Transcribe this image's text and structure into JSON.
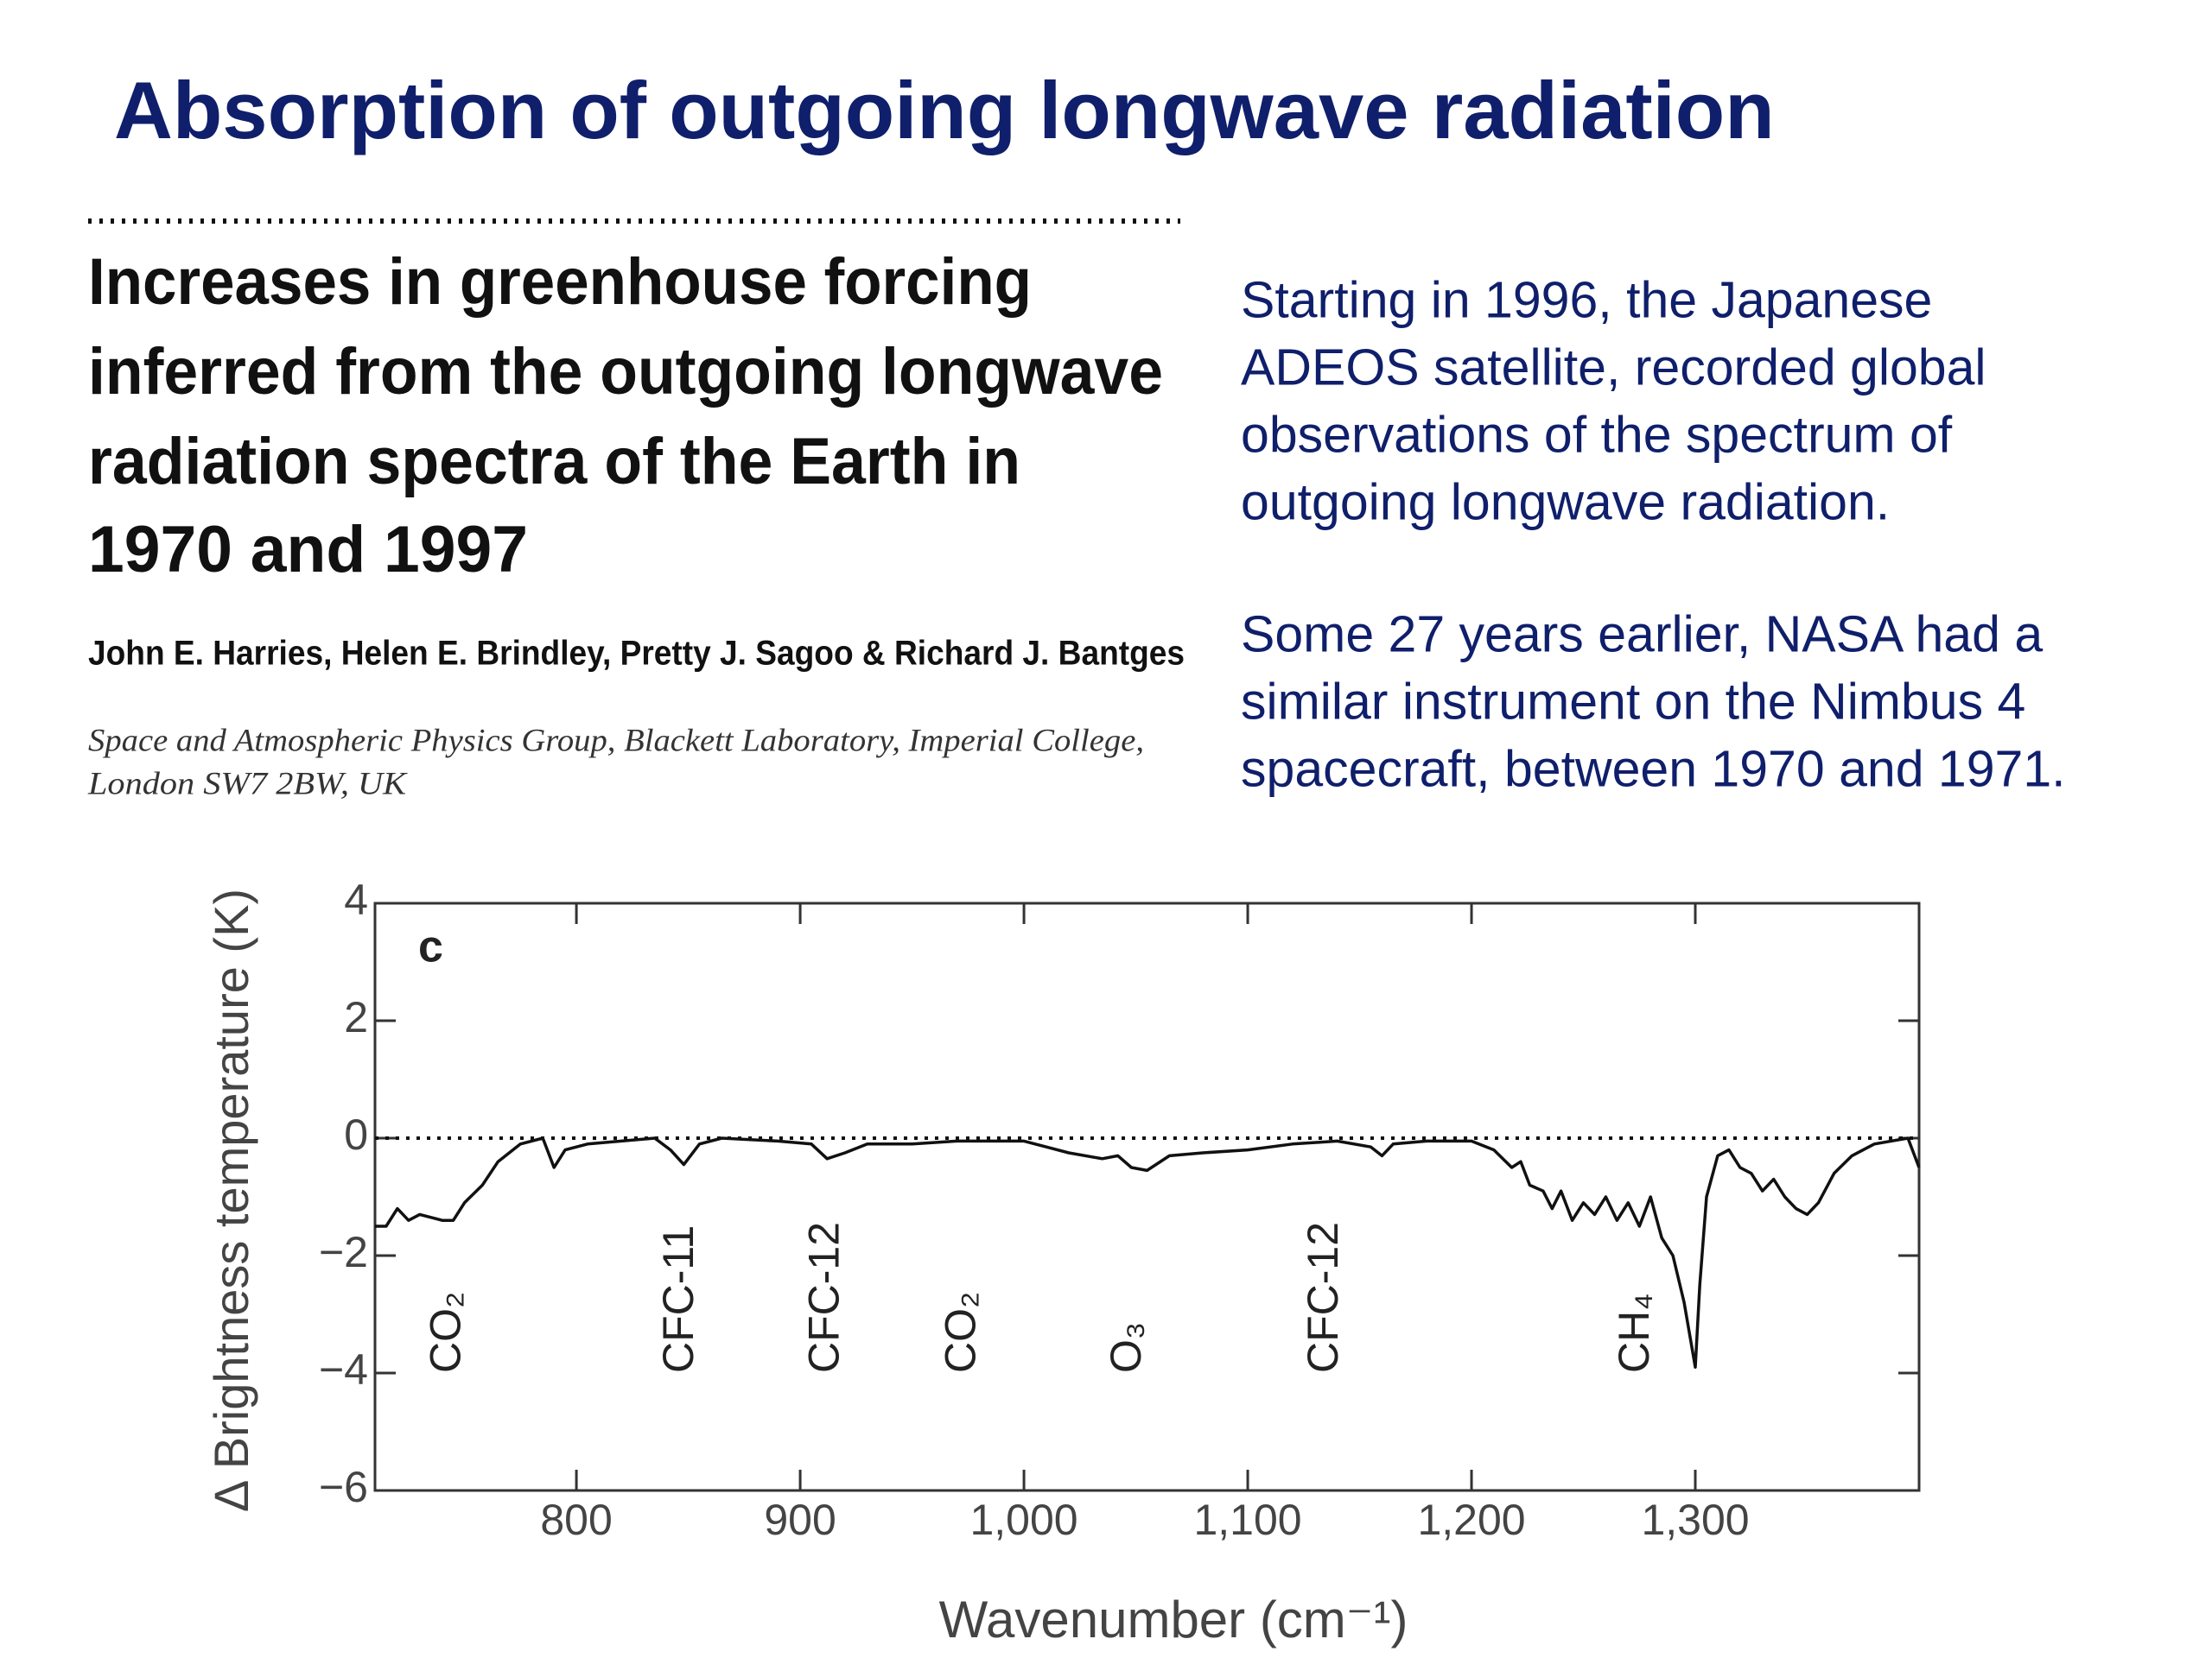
{
  "slide": {
    "title": "Absorption of outgoing longwave radiation",
    "paper_title": [
      "Increases in greenhouse forcing",
      "inferred from the outgoing longwave",
      "radiation spectra of the Earth in",
      "1970 and 1997"
    ],
    "authors": "John E. Harries, Helen E. Brindley, Pretty J. Sagoo & Richard J. Bantges",
    "affiliation": [
      "Space and Atmospheric Physics Group, Blackett Laboratory, Imperial College,",
      "London SW7 2BW, UK"
    ],
    "description": [
      [
        "Starting in 1996, the Japanese",
        "ADEOS satellite, recorded global",
        "observations of the spectrum of",
        "outgoing longwave radiation."
      ],
      [
        "Some 27 years earlier, NASA had a",
        "similar instrument on the Nimbus 4",
        "spacecraft, between 1970 and  1971."
      ]
    ]
  },
  "chart_data": {
    "type": "line",
    "panel_label": "c",
    "x_label": "Wavenumber (cm⁻¹)",
    "y_label": "Δ Brightness temperature (K)",
    "xlim": [
      710,
      1400
    ],
    "ylim": [
      -6,
      4
    ],
    "xticks": [
      800,
      900,
      {
        "value": 1000,
        "label": "1,000"
      },
      {
        "value": 1100,
        "label": "1,100"
      },
      {
        "value": 1200,
        "label": "1,200"
      },
      {
        "value": 1300,
        "label": "1,300"
      }
    ],
    "yticks": [
      4,
      2,
      0,
      {
        "value": -2,
        "label": "−2"
      },
      {
        "value": -4,
        "label": "−4"
      },
      {
        "value": -6,
        "label": "−6"
      }
    ],
    "reference_line": 0,
    "color": "#111111",
    "x": [
      710,
      715,
      720,
      725,
      730,
      740,
      745,
      750,
      758,
      765,
      775,
      785,
      790,
      795,
      805,
      820,
      835,
      842,
      848,
      855,
      865,
      890,
      905,
      912,
      920,
      930,
      950,
      970,
      1000,
      1010,
      1020,
      1035,
      1042,
      1048,
      1055,
      1065,
      1080,
      1100,
      1120,
      1140,
      1155,
      1160,
      1165,
      1180,
      1200,
      1210,
      1218,
      1222,
      1226,
      1232,
      1236,
      1240,
      1245,
      1250,
      1255,
      1260,
      1265,
      1270,
      1275,
      1280,
      1285,
      1290,
      1295,
      1300,
      1302,
      1305,
      1310,
      1315,
      1320,
      1325,
      1330,
      1335,
      1340,
      1345,
      1350,
      1355,
      1362,
      1370,
      1380,
      1395,
      1400
    ],
    "values": [
      -1.5,
      -1.5,
      -1.2,
      -1.4,
      -1.3,
      -1.4,
      -1.4,
      -1.1,
      -0.8,
      -0.4,
      -0.1,
      0,
      -0.5,
      -0.2,
      -0.1,
      -0.05,
      0,
      -0.2,
      -0.45,
      -0.1,
      0,
      -0.05,
      -0.1,
      -0.35,
      -0.25,
      -0.1,
      -0.1,
      -0.05,
      -0.05,
      -0.15,
      -0.25,
      -0.35,
      -0.3,
      -0.5,
      -0.55,
      -0.3,
      -0.25,
      -0.2,
      -0.1,
      -0.05,
      -0.15,
      -0.3,
      -0.1,
      -0.05,
      -0.05,
      -0.2,
      -0.5,
      -0.4,
      -0.8,
      -0.9,
      -1.2,
      -0.9,
      -1.4,
      -1.1,
      -1.3,
      -1.0,
      -1.4,
      -1.1,
      -1.5,
      -1.0,
      -1.7,
      -2.0,
      -2.8,
      -3.9,
      -2.5,
      -1.0,
      -0.3,
      -0.2,
      -0.5,
      -0.6,
      -0.9,
      -0.7,
      -1.0,
      -1.2,
      -1.3,
      -1.1,
      -0.6,
      -0.3,
      -0.1,
      0,
      -0.5
    ],
    "annotations": [
      {
        "text": "CO₂",
        "x": 743,
        "y": -4
      },
      {
        "text": "CFC-11",
        "x": 847,
        "y": -4
      },
      {
        "text": "CFC-12",
        "x": 912,
        "y": -4
      },
      {
        "text": "CO₂",
        "x": 973,
        "y": -4
      },
      {
        "text": "O₃",
        "x": 1047,
        "y": -4
      },
      {
        "text": "CFC-12",
        "x": 1135,
        "y": -4
      },
      {
        "text": "CH₄",
        "x": 1274,
        "y": -4
      }
    ]
  }
}
